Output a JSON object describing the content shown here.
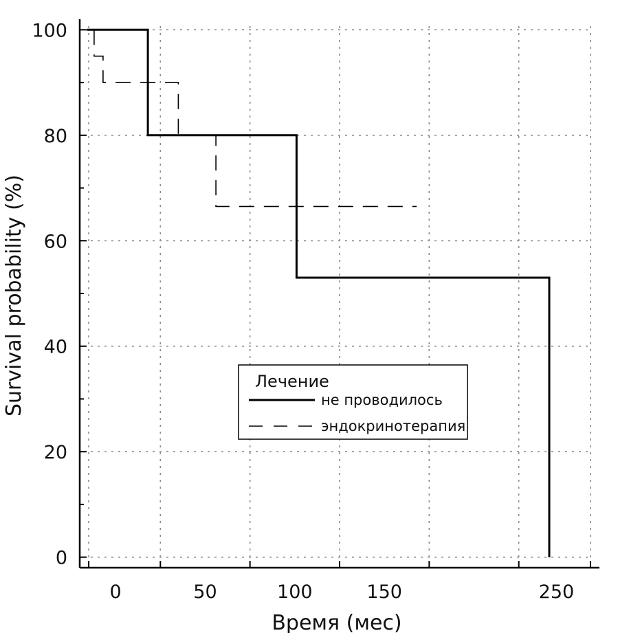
{
  "chart_data": {
    "type": "line",
    "title": "",
    "xlabel": "Время (мес)",
    "ylabel": "Survival probability (%)",
    "xlim": [
      -20,
      270
    ],
    "ylim": [
      -2,
      102
    ],
    "x_ticks": [
      0,
      50,
      100,
      150,
      250
    ],
    "y_ticks": [
      0,
      20,
      40,
      60,
      80,
      100
    ],
    "grid": true,
    "legend": {
      "title": "Лечение",
      "position": "center-right"
    },
    "series": [
      {
        "name": "не проводилось",
        "style": "solid",
        "color": "#000000",
        "x": [
          -16,
          18,
          18,
          101,
          101,
          242,
          242
        ],
        "y": [
          100,
          100,
          80,
          80,
          53,
          53,
          0
        ]
      },
      {
        "name": "эндокринотерапия",
        "style": "dashed",
        "color": "#000000",
        "x": [
          -12,
          -12,
          -7,
          -7,
          35,
          35,
          56,
          56,
          168
        ],
        "y": [
          100,
          95,
          95,
          90,
          90,
          80,
          80,
          66.5,
          66.5
        ]
      }
    ]
  }
}
